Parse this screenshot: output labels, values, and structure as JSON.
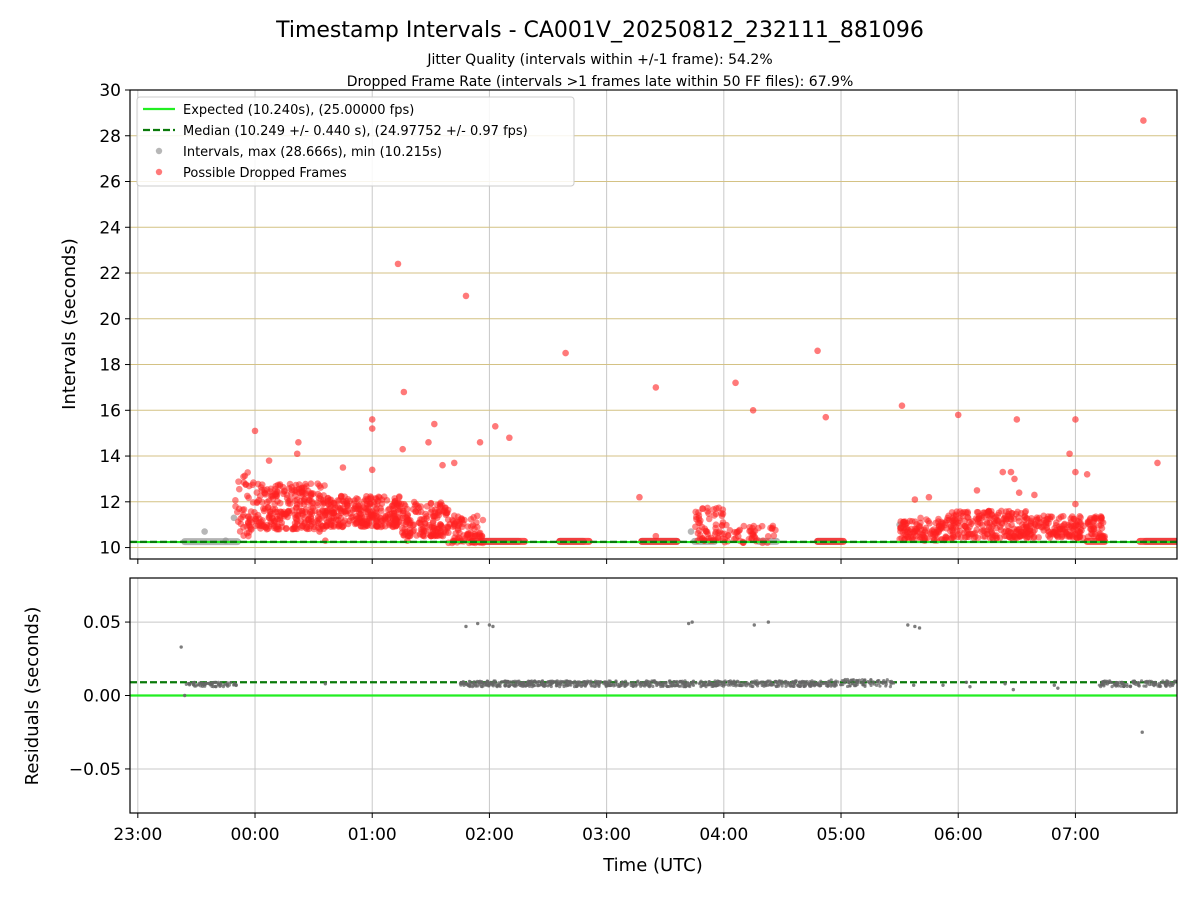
{
  "title": "Timestamp Intervals - CA001V_20250812_232111_881096",
  "subtitle_lines": [
    "Jitter Quality (intervals within +/-1 frame): 54.2%",
    "Dropped Frame Rate (intervals >1 frames late within 50 FF files): 67.9%"
  ],
  "colors": {
    "expected": "#22ee22",
    "median": "#0a7a0a",
    "intervals": "#999999",
    "dropped": "#ff2020",
    "residuals": "#666666",
    "hgrid_top": "#d4c284",
    "grid": "#c8c8c8"
  },
  "chart_data": [
    {
      "type": "scatter",
      "panel": "intervals",
      "ylabel": "Intervals (seconds)",
      "xlabel": "",
      "ylim": [
        9.5,
        30
      ],
      "yticks": [
        10,
        12,
        14,
        16,
        18,
        20,
        22,
        24,
        26,
        28,
        30
      ],
      "ytick_labels": [
        "10",
        "12",
        "14",
        "16",
        "18",
        "20",
        "22",
        "24",
        "26",
        "28",
        "30"
      ],
      "xlim_hours": [
        -1.0667,
        7.8667
      ],
      "grid": true,
      "legend_location": "top-left",
      "legend": [
        {
          "label": "Expected (10.240s), (25.00000 fps)",
          "kind": "solid-line",
          "color": "#22ee22"
        },
        {
          "label": "Median (10.249 +/- 0.440 s), (24.97752 +/- 0.97 fps)",
          "kind": "dashed-line",
          "color": "#0a7a0a"
        },
        {
          "label": "Intervals, max (28.666s), min (10.215s)",
          "kind": "marker",
          "color": "#999999"
        },
        {
          "label": "Possible Dropped Frames",
          "kind": "marker",
          "color": "#ff2020"
        }
      ],
      "reference_lines": {
        "expected": 10.24,
        "median": 10.249
      },
      "series": [
        {
          "name": "Intervals, max (28.666s), min (10.215s)",
          "segments": [
            {
              "x": [
                -0.6,
                -0.15
              ],
              "y": 10.26
            },
            {
              "x": [
                1.85,
                2.25
              ],
              "y": 10.27
            },
            {
              "x": [
                2.6,
                2.8
              ],
              "y": 10.27
            },
            {
              "x": [
                3.3,
                3.6
              ],
              "y": 10.27
            },
            {
              "x": [
                3.75,
                3.92
              ],
              "y": 10.27
            },
            {
              "x": [
                4.3,
                4.45
              ],
              "y": 10.27
            },
            {
              "x": [
                4.8,
                5.0
              ],
              "y": 10.27
            },
            {
              "x": [
                7.6,
                7.87
              ],
              "y": 10.27
            }
          ],
          "points": [
            {
              "x": -0.43,
              "y": 10.7
            },
            {
              "x": -0.18,
              "y": 11.3
            },
            {
              "x": 3.72,
              "y": 10.7
            },
            {
              "x": 5.5,
              "y": 11.0
            },
            {
              "x": -0.25,
              "y": 10.3
            }
          ]
        },
        {
          "name": "Possible Dropped Frames",
          "clusters": [
            {
              "x": [
                -0.17,
                0.0
              ],
              "y": [
                10.5,
                13.3
              ],
              "n": 45
            },
            {
              "x": [
                0.0,
                0.6
              ],
              "y": [
                10.8,
                12.8
              ],
              "n": 260
            },
            {
              "x": [
                0.6,
                1.25
              ],
              "y": [
                10.9,
                12.3
              ],
              "n": 270
            },
            {
              "x": [
                1.25,
                1.65
              ],
              "y": [
                10.5,
                12.0
              ],
              "n": 150
            },
            {
              "x": [
                1.65,
                1.95
              ],
              "y": [
                10.2,
                11.4
              ],
              "n": 80
            },
            {
              "x": [
                3.75,
                4.0
              ],
              "y": [
                10.3,
                11.8
              ],
              "n": 60
            },
            {
              "x": [
                4.0,
                4.45
              ],
              "y": [
                10.2,
                11.0
              ],
              "n": 50
            },
            {
              "x": [
                5.5,
                5.9
              ],
              "y": [
                10.3,
                11.3
              ],
              "n": 110
            },
            {
              "x": [
                5.9,
                6.6
              ],
              "y": [
                10.4,
                11.6
              ],
              "n": 220
            },
            {
              "x": [
                6.6,
                7.25
              ],
              "y": [
                10.4,
                11.4
              ],
              "n": 180
            }
          ],
          "lines_at_base": [
            {
              "x": [
                1.85,
                2.3
              ],
              "y": 10.27
            },
            {
              "x": [
                2.6,
                2.85
              ],
              "y": 10.27
            },
            {
              "x": [
                3.3,
                3.6
              ],
              "y": 10.27
            },
            {
              "x": [
                4.8,
                5.02
              ],
              "y": 10.27
            },
            {
              "x": [
                7.1,
                7.25
              ],
              "y": 10.27
            },
            {
              "x": [
                7.55,
                7.87
              ],
              "y": 10.27
            }
          ],
          "points": [
            {
              "x": 0.0,
              "y": 15.1
            },
            {
              "x": 0.12,
              "y": 13.8
            },
            {
              "x": 0.37,
              "y": 14.6
            },
            {
              "x": 0.36,
              "y": 14.1
            },
            {
              "x": 0.55,
              "y": 10.7
            },
            {
              "x": 0.6,
              "y": 10.3
            },
            {
              "x": 0.75,
              "y": 13.5
            },
            {
              "x": 1.0,
              "y": 15.6
            },
            {
              "x": 1.0,
              "y": 15.2
            },
            {
              "x": 1.0,
              "y": 13.4
            },
            {
              "x": 1.22,
              "y": 22.4
            },
            {
              "x": 1.27,
              "y": 16.8
            },
            {
              "x": 1.26,
              "y": 14.3
            },
            {
              "x": 1.3,
              "y": 10.3
            },
            {
              "x": 1.48,
              "y": 14.6
            },
            {
              "x": 1.53,
              "y": 15.4
            },
            {
              "x": 1.6,
              "y": 13.6
            },
            {
              "x": 1.7,
              "y": 13.7
            },
            {
              "x": 1.8,
              "y": 21.0
            },
            {
              "x": 1.92,
              "y": 14.6
            },
            {
              "x": 2.05,
              "y": 15.3
            },
            {
              "x": 2.17,
              "y": 14.8
            },
            {
              "x": 2.65,
              "y": 18.5
            },
            {
              "x": 3.28,
              "y": 12.2
            },
            {
              "x": 3.42,
              "y": 17.0
            },
            {
              "x": 3.42,
              "y": 10.5
            },
            {
              "x": 4.1,
              "y": 17.2
            },
            {
              "x": 4.25,
              "y": 16.0
            },
            {
              "x": 4.8,
              "y": 18.6
            },
            {
              "x": 4.87,
              "y": 15.7
            },
            {
              "x": 5.52,
              "y": 16.2
            },
            {
              "x": 5.63,
              "y": 12.1
            },
            {
              "x": 5.75,
              "y": 12.2
            },
            {
              "x": 6.0,
              "y": 15.8
            },
            {
              "x": 6.16,
              "y": 12.5
            },
            {
              "x": 6.38,
              "y": 13.3
            },
            {
              "x": 6.45,
              "y": 13.3
            },
            {
              "x": 6.5,
              "y": 15.6
            },
            {
              "x": 6.48,
              "y": 13.0
            },
            {
              "x": 6.52,
              "y": 12.4
            },
            {
              "x": 6.65,
              "y": 12.3
            },
            {
              "x": 6.95,
              "y": 14.1
            },
            {
              "x": 7.0,
              "y": 15.6
            },
            {
              "x": 7.0,
              "y": 13.3
            },
            {
              "x": 7.1,
              "y": 13.2
            },
            {
              "x": 7.0,
              "y": 11.9
            },
            {
              "x": 7.58,
              "y": 28.666
            },
            {
              "x": 7.7,
              "y": 13.7
            }
          ]
        }
      ]
    },
    {
      "type": "scatter",
      "panel": "residuals",
      "xlabel": "Time (UTC)",
      "ylabel": "Residuals (seconds)",
      "ylim": [
        -0.08,
        0.08
      ],
      "yticks": [
        -0.05,
        0.0,
        0.05
      ],
      "ytick_labels": [
        "−0.05",
        "0.00",
        "0.05"
      ],
      "xlim_hours": [
        -1.0667,
        7.8667
      ],
      "xticks": [
        -1,
        0,
        1,
        2,
        3,
        4,
        5,
        6,
        7
      ],
      "xtick_labels": [
        "23:00",
        "00:00",
        "01:00",
        "02:00",
        "03:00",
        "04:00",
        "05:00",
        "06:00",
        "07:00"
      ],
      "grid": true,
      "reference_lines": {
        "expected": 0.0,
        "median": 0.009
      },
      "series": [
        {
          "name": "",
          "clusters": [
            {
              "x": [
                -0.6,
                -0.15
              ],
              "y": [
                0.006,
                0.009
              ],
              "n": 70
            },
            {
              "x": [
                1.75,
                4.9
              ],
              "y": [
                0.006,
                0.01
              ],
              "n": 700
            },
            {
              "x": [
                4.9,
                5.45
              ],
              "y": [
                0.006,
                0.011
              ],
              "n": 90
            },
            {
              "x": [
                7.2,
                7.87
              ],
              "y": [
                0.006,
                0.01
              ],
              "n": 120
            }
          ],
          "points": [
            {
              "x": -0.63,
              "y": 0.033
            },
            {
              "x": -0.6,
              "y": 0.0
            },
            {
              "x": 1.8,
              "y": 0.047
            },
            {
              "x": 1.9,
              "y": 0.049
            },
            {
              "x": 2.0,
              "y": 0.048
            },
            {
              "x": 2.03,
              "y": 0.047
            },
            {
              "x": 3.7,
              "y": 0.049
            },
            {
              "x": 3.73,
              "y": 0.05
            },
            {
              "x": 4.26,
              "y": 0.048
            },
            {
              "x": 4.38,
              "y": 0.05
            },
            {
              "x": 5.57,
              "y": 0.048
            },
            {
              "x": 5.63,
              "y": 0.047
            },
            {
              "x": 5.67,
              "y": 0.046
            },
            {
              "x": 0.6,
              "y": 0.008
            },
            {
              "x": 5.62,
              "y": 0.007
            },
            {
              "x": 5.87,
              "y": 0.007
            },
            {
              "x": 6.07,
              "y": 0.009
            },
            {
              "x": 6.1,
              "y": 0.006
            },
            {
              "x": 6.4,
              "y": 0.008
            },
            {
              "x": 6.47,
              "y": 0.004
            },
            {
              "x": 6.82,
              "y": 0.007
            },
            {
              "x": 6.85,
              "y": 0.005
            },
            {
              "x": 7.57,
              "y": -0.025
            }
          ]
        }
      ]
    }
  ]
}
